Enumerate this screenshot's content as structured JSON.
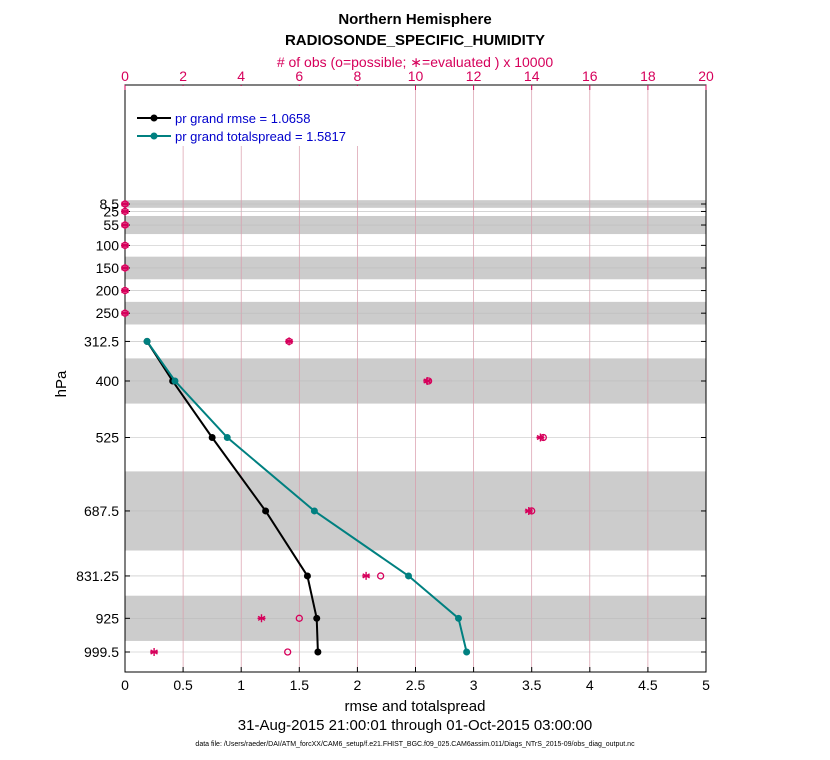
{
  "chart_data": {
    "type": "line",
    "title": "Northern Hemisphere",
    "subtitle": "RADIOSONDE_SPECIFIC_HUMIDITY",
    "top_axis_label": "# of obs (o=possible; ∗=evaluated ) x 10000",
    "xlabel": "rmse and totalspread",
    "ylabel": "hPa",
    "date_range": "31-Aug-2015 21:00:01 through 01-Oct-2015 03:00:00",
    "footnote": "data file: /Users/raeder/DAI/ATM_forcXX/CAM6_setup/f.e21.FHIST_BGC.f09_025.CAM6assim.011/Diags_NTrS_2015-09/obs_diag_output.nc",
    "xlim": [
      0,
      5
    ],
    "x_ticks": [
      "0",
      "0.5",
      "1",
      "1.5",
      "2",
      "2.5",
      "3",
      "3.5",
      "4",
      "4.5",
      "5"
    ],
    "top_xlim": [
      0,
      20
    ],
    "top_ticks": [
      "0",
      "2",
      "4",
      "6",
      "8",
      "10",
      "12",
      "14",
      "16",
      "18",
      "20"
    ],
    "pressure_levels": [
      "8.5",
      "25",
      "55",
      "100",
      "150",
      "200",
      "250",
      "312.5",
      "400",
      "525",
      "687.5",
      "831.25",
      "925",
      "999.5"
    ],
    "pressure_values": [
      8.5,
      25,
      55,
      100,
      150,
      200,
      250,
      312.5,
      400,
      525,
      687.5,
      831.25,
      925,
      999.5
    ],
    "shaded_bands_hpa": [
      [
        0,
        17
      ],
      [
        35,
        75
      ],
      [
        125,
        175
      ],
      [
        225,
        275
      ],
      [
        350,
        450
      ],
      [
        600,
        775
      ],
      [
        875,
        975
      ]
    ],
    "series": [
      {
        "name": "pr grand rmse = 1.0658",
        "color": "#000000",
        "x": [
          0.19,
          0.41,
          0.75,
          1.21,
          1.57,
          1.65,
          1.66
        ],
        "y": [
          312.5,
          400,
          525,
          687.5,
          831.25,
          925,
          999.5
        ]
      },
      {
        "name": "pr grand totalspread = 1.5817",
        "color": "#008080",
        "x": [
          0.19,
          0.43,
          0.88,
          1.63,
          2.44,
          2.87,
          2.94
        ],
        "y": [
          312.5,
          400,
          525,
          687.5,
          831.25,
          925,
          999.5
        ]
      }
    ],
    "obs_possible": {
      "color": "#d6005b",
      "x": [
        0,
        0,
        0,
        0,
        0,
        0,
        0,
        5.65,
        10.45,
        14.4,
        14.0,
        8.8,
        6.0,
        5.6
      ],
      "y": [
        8.5,
        25,
        55,
        100,
        150,
        200,
        250,
        312.5,
        400,
        525,
        687.5,
        831.25,
        925,
        999.5
      ]
    },
    "obs_evaluated": {
      "color": "#d6005b",
      "x": [
        0,
        0,
        0,
        0,
        0,
        0,
        0,
        5.65,
        10.4,
        14.3,
        13.9,
        8.3,
        4.7,
        1.0
      ],
      "y": [
        8.5,
        25,
        55,
        100,
        150,
        200,
        250,
        312.5,
        400,
        525,
        687.5,
        831.25,
        925,
        999.5
      ]
    }
  }
}
